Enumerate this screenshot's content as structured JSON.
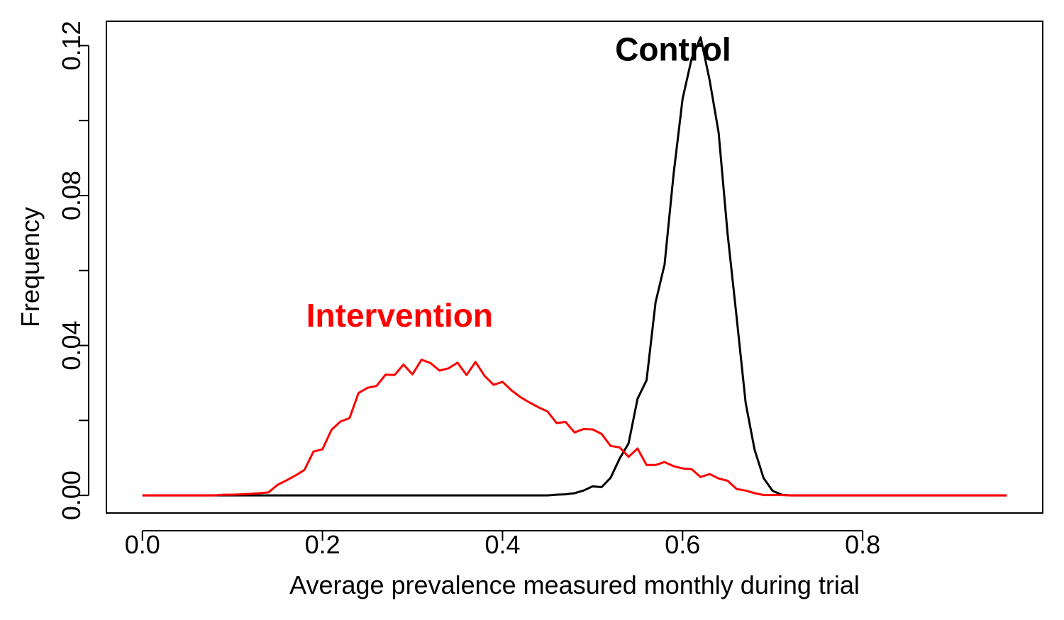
{
  "chart_data": {
    "type": "line",
    "title": "",
    "xlabel": "Average prevalence measured monthly during trial",
    "ylabel": "Frequency",
    "xlim": [
      -0.04,
      1.0
    ],
    "ylim": [
      -0.0047,
      0.1265
    ],
    "x_ticks": [
      0.0,
      0.2,
      0.4,
      0.6,
      0.8
    ],
    "x_tick_labels": [
      "0.0",
      "0.2",
      "0.4",
      "0.6",
      "0.8"
    ],
    "y_ticks": [
      0.0,
      0.02,
      0.04,
      0.06,
      0.08,
      0.1,
      0.12
    ],
    "y_tick_labels": [
      "0.00",
      "",
      "0.04",
      "",
      "0.08",
      "",
      "0.12"
    ],
    "grid": false,
    "legend": "none",
    "series": [
      {
        "name": "Control",
        "color": "#000000",
        "label_position": [
          0.525,
          0.116
        ],
        "x": [
          0.0,
          0.08,
          0.1,
          0.2,
          0.3,
          0.4,
          0.45,
          0.46,
          0.47,
          0.48,
          0.49,
          0.5,
          0.51,
          0.52,
          0.53,
          0.54,
          0.55,
          0.56,
          0.57,
          0.58,
          0.59,
          0.6,
          0.61,
          0.62,
          0.63,
          0.64,
          0.65,
          0.66,
          0.67,
          0.68,
          0.69,
          0.7,
          0.71,
          0.72,
          0.73,
          0.8,
          0.9,
          0.96
        ],
        "values": [
          0,
          0,
          0,
          0,
          0,
          0,
          0,
          0.0002,
          0.0003,
          0.0006,
          0.0013,
          0.0024,
          0.0022,
          0.0047,
          0.0098,
          0.0139,
          0.0258,
          0.0307,
          0.0515,
          0.0616,
          0.0857,
          0.1058,
          0.1165,
          0.1222,
          0.1108,
          0.0968,
          0.0697,
          0.0475,
          0.0247,
          0.0122,
          0.0046,
          0.0012,
          0.0002,
          0,
          0,
          0,
          0,
          0
        ]
      },
      {
        "name": "Intervention",
        "color": "#ff0000",
        "label_position": [
          0.182,
          0.045
        ],
        "x": [
          0.0,
          0.08,
          0.09,
          0.1,
          0.11,
          0.12,
          0.13,
          0.14,
          0.15,
          0.16,
          0.17,
          0.18,
          0.19,
          0.2,
          0.21,
          0.22,
          0.23,
          0.24,
          0.25,
          0.26,
          0.27,
          0.28,
          0.29,
          0.3,
          0.31,
          0.32,
          0.33,
          0.34,
          0.35,
          0.36,
          0.37,
          0.38,
          0.39,
          0.4,
          0.41,
          0.42,
          0.43,
          0.44,
          0.45,
          0.46,
          0.47,
          0.48,
          0.49,
          0.5,
          0.51,
          0.52,
          0.53,
          0.54,
          0.55,
          0.56,
          0.57,
          0.58,
          0.59,
          0.6,
          0.61,
          0.62,
          0.63,
          0.64,
          0.65,
          0.66,
          0.67,
          0.68,
          0.69,
          0.7,
          0.71,
          0.72,
          0.8,
          0.9,
          0.96
        ],
        "values": [
          0,
          0,
          0.0002,
          0.0002,
          0.0003,
          0.0004,
          0.0006,
          0.0008,
          0.0028,
          0.004,
          0.0053,
          0.0068,
          0.0117,
          0.0123,
          0.0175,
          0.0197,
          0.0206,
          0.0273,
          0.0287,
          0.0292,
          0.0322,
          0.0321,
          0.0349,
          0.0323,
          0.0362,
          0.0353,
          0.0333,
          0.0339,
          0.0354,
          0.0321,
          0.0356,
          0.0319,
          0.0295,
          0.0303,
          0.028,
          0.0262,
          0.0248,
          0.0235,
          0.0224,
          0.0193,
          0.0196,
          0.0168,
          0.0177,
          0.0176,
          0.0164,
          0.0132,
          0.0128,
          0.0103,
          0.0125,
          0.0081,
          0.0081,
          0.0089,
          0.0078,
          0.0072,
          0.007,
          0.0049,
          0.0057,
          0.0045,
          0.0039,
          0.0017,
          0.0013,
          0.0006,
          0.0001,
          0.0001,
          0.0001,
          0,
          0,
          0,
          0
        ]
      }
    ]
  }
}
